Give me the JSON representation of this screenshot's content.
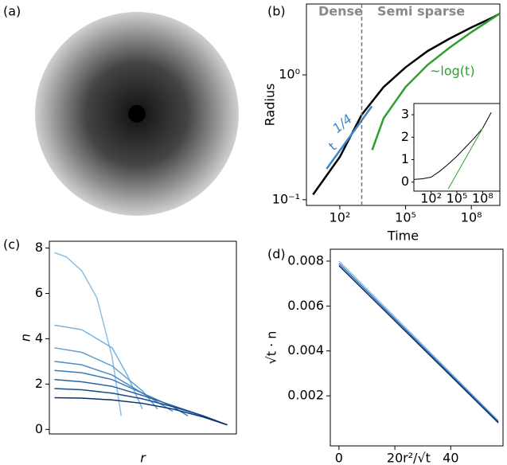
{
  "chart_data": [
    {
      "type": "image",
      "label": "(a)"
    },
    {
      "type": "line",
      "label": "(b)",
      "xlabel": "Time",
      "ylabel": "Radius",
      "xscale": "log",
      "yscale": "log",
      "xlim": [
        3,
        2000000000
      ],
      "ylim": [
        0.09,
        3.7
      ],
      "xticks": [
        {
          "value": 100,
          "label": "10²"
        },
        {
          "value": 100000,
          "label": "10⁵"
        },
        {
          "value": 100000000,
          "label": "10⁸"
        }
      ],
      "yticks": [
        {
          "value": 0.1,
          "label": "10⁻¹"
        },
        {
          "value": 1,
          "label": "10⁰"
        }
      ],
      "vline": 1000,
      "regions": [
        "Dense",
        "Semi sparse"
      ],
      "series": [
        {
          "color": "#000000",
          "x": [
            6,
            100,
            1000,
            10000,
            100000,
            1000000,
            10000000,
            100000000,
            1000000000,
            2000000000
          ],
          "values": [
            0.11,
            0.22,
            0.48,
            0.8,
            1.15,
            1.55,
            1.95,
            2.4,
            2.9,
            3.1
          ]
        },
        {
          "color": "#2ca02c",
          "x": [
            3000,
            10000,
            100000,
            1000000,
            10000000,
            100000000,
            2000000000
          ],
          "values": [
            0.25,
            0.45,
            0.8,
            1.2,
            1.65,
            2.2,
            3.1
          ]
        },
        {
          "color": "#3a86c8",
          "x": [
            25,
            2900
          ],
          "values": [
            0.177,
            0.56
          ]
        }
      ],
      "annotations": [
        {
          "text": "~log(t)",
          "color": "#2ca02c"
        },
        {
          "text": "t",
          "sup": "1/4",
          "color": "#3a86c8"
        }
      ],
      "inset": {
        "xscale": "log",
        "xlim": [
          1,
          10000000000
        ],
        "ylim": [
          -0.4,
          3.5
        ],
        "xticks": [
          {
            "value": 100,
            "label": "10²"
          },
          {
            "value": 100000,
            "label": "10⁵"
          },
          {
            "value": 100000000,
            "label": "10⁸"
          }
        ],
        "yticks": [
          0,
          1,
          2,
          3
        ],
        "series": [
          {
            "color": "#000000",
            "x": [
              1,
              10,
              100,
              1000,
              10000,
              100000,
              1000000,
              10000000,
              100000000,
              1000000000
            ],
            "values": [
              0.12,
              0.15,
              0.22,
              0.48,
              0.8,
              1.15,
              1.55,
              1.95,
              2.4,
              3.1
            ]
          },
          {
            "color": "#2ca02c",
            "x": [
              10000,
              100000000
            ],
            "values": [
              -0.3,
              2.4
            ]
          }
        ]
      }
    },
    {
      "type": "line",
      "label": "(c)",
      "xlabel": "r",
      "ylabel": "n",
      "xlim": [
        -0.007,
        0.61
      ],
      "ylim": [
        -0.2,
        8.3
      ],
      "yticks": [
        0,
        2,
        4,
        6,
        8
      ],
      "series": [
        {
          "color": "#8cc0e6",
          "x": [
            0.01,
            0.05,
            0.1,
            0.15,
            0.2,
            0.23
          ],
          "values": [
            7.8,
            7.6,
            7.0,
            5.8,
            3.2,
            0.6
          ]
        },
        {
          "color": "#78b1de",
          "x": [
            0.01,
            0.1,
            0.2,
            0.25,
            0.3
          ],
          "values": [
            4.6,
            4.4,
            3.6,
            2.4,
            0.9
          ]
        },
        {
          "color": "#62a0d4",
          "x": [
            0.01,
            0.1,
            0.2,
            0.3,
            0.35
          ],
          "values": [
            3.6,
            3.4,
            2.8,
            1.7,
            0.9
          ]
        },
        {
          "color": "#4d8dc8",
          "x": [
            0.01,
            0.1,
            0.2,
            0.3,
            0.4
          ],
          "values": [
            3.0,
            2.85,
            2.4,
            1.6,
            0.8
          ]
        },
        {
          "color": "#3a78b8",
          "x": [
            0.01,
            0.1,
            0.2,
            0.3,
            0.4,
            0.45
          ],
          "values": [
            2.6,
            2.5,
            2.2,
            1.6,
            1.0,
            0.6
          ]
        },
        {
          "color": "#2862a2",
          "x": [
            0.01,
            0.1,
            0.2,
            0.3,
            0.4,
            0.5,
            0.55
          ],
          "values": [
            2.2,
            2.1,
            1.9,
            1.5,
            1.05,
            0.6,
            0.35
          ]
        },
        {
          "color": "#174c88",
          "x": [
            0.01,
            0.1,
            0.2,
            0.3,
            0.4,
            0.5,
            0.58
          ],
          "values": [
            1.8,
            1.75,
            1.6,
            1.35,
            1.0,
            0.6,
            0.2
          ]
        },
        {
          "color": "#08306b",
          "x": [
            0.01,
            0.1,
            0.2,
            0.3,
            0.4,
            0.5,
            0.58
          ],
          "values": [
            1.4,
            1.38,
            1.3,
            1.15,
            0.9,
            0.55,
            0.2
          ]
        }
      ]
    },
    {
      "type": "line",
      "label": "(d)",
      "xlabel": "r²/√t",
      "ylabel": "√t · n",
      "xlim": [
        -3.1,
        58.7
      ],
      "ylim": [
        -0.00023,
        0.00853
      ],
      "xticks": [
        0,
        20,
        40
      ],
      "yticks": [
        0.002,
        0.004,
        0.006,
        0.008
      ],
      "series": [
        {
          "color": "#8cc0e6",
          "x": [
            0,
            57
          ],
          "values": [
            0.008,
            0.0009
          ]
        },
        {
          "color": "#3a78b8",
          "x": [
            0,
            57
          ],
          "values": [
            0.0079,
            0.00085
          ]
        },
        {
          "color": "#08306b",
          "x": [
            0,
            57
          ],
          "values": [
            0.0078,
            0.0008
          ]
        }
      ]
    }
  ]
}
